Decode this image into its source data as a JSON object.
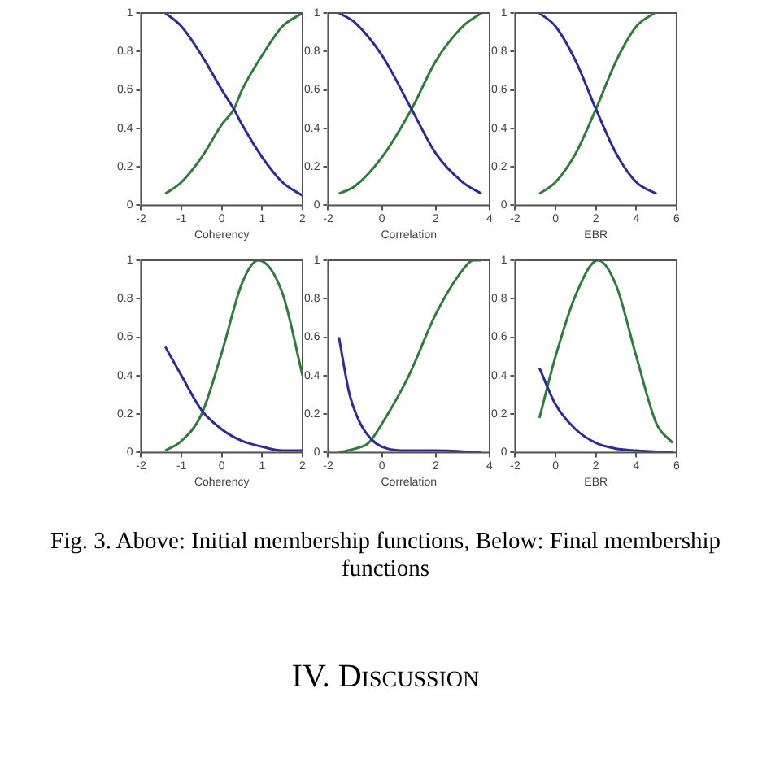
{
  "chart_data": [
    {
      "type": "line",
      "xlabel": "Coherency",
      "xlim": [
        -2,
        2
      ],
      "xticks": [
        -2,
        -1,
        0,
        1,
        2
      ],
      "ylim": [
        0,
        1
      ],
      "yticks": [
        0,
        0.2,
        0.4,
        0.6,
        0.8,
        1
      ],
      "annotations": [
        "Fig. 3. Above: Initial membership functions, Below: Final membership functions",
        "IV. Discussion"
      ],
      "series": [
        {
          "color": "#2b2b9a",
          "x": [
            -1.4,
            -1,
            -0.5,
            0,
            0.3,
            0.5,
            1,
            1.5,
            2
          ],
          "values": [
            1,
            0.93,
            0.78,
            0.6,
            0.5,
            0.42,
            0.25,
            0.12,
            0.05
          ]
        },
        {
          "color": "#2e7d3a",
          "x": [
            -1.4,
            -1,
            -0.5,
            0,
            0.3,
            0.5,
            1,
            1.5,
            2
          ],
          "values": [
            0.06,
            0.12,
            0.25,
            0.42,
            0.5,
            0.6,
            0.78,
            0.93,
            1
          ]
        }
      ]
    },
    {
      "type": "line",
      "xlabel": "Correlation",
      "xlim": [
        -2,
        4
      ],
      "xticks": [
        -2,
        0,
        2,
        4
      ],
      "ylim": [
        0,
        1
      ],
      "yticks": [
        0,
        0.2,
        0.4,
        0.6,
        0.8,
        1
      ],
      "series": [
        {
          "color": "#2b2b9a",
          "x": [
            -1.6,
            -1,
            0,
            1.1,
            2,
            3,
            3.7
          ],
          "values": [
            1,
            0.95,
            0.78,
            0.5,
            0.27,
            0.12,
            0.06
          ]
        },
        {
          "color": "#2e7d3a",
          "x": [
            -1.6,
            -1,
            0,
            1.1,
            2,
            3,
            3.7
          ],
          "values": [
            0.06,
            0.1,
            0.25,
            0.5,
            0.75,
            0.93,
            1
          ]
        }
      ]
    },
    {
      "type": "line",
      "xlabel": "EBR",
      "xlim": [
        -2,
        6
      ],
      "xticks": [
        -2,
        0,
        2,
        4,
        6
      ],
      "ylim": [
        0,
        1
      ],
      "yticks": [
        0,
        0.2,
        0.4,
        0.6,
        0.8,
        1
      ],
      "series": [
        {
          "color": "#2b2b9a",
          "x": [
            -0.8,
            0,
            1,
            2,
            3,
            4,
            5
          ],
          "values": [
            1,
            0.93,
            0.75,
            0.5,
            0.27,
            0.12,
            0.06
          ]
        },
        {
          "color": "#2e7d3a",
          "x": [
            -0.8,
            0,
            1,
            2,
            3,
            4,
            4.9
          ],
          "values": [
            0.06,
            0.12,
            0.27,
            0.5,
            0.75,
            0.93,
            1
          ]
        }
      ]
    },
    {
      "type": "line",
      "xlabel": "Coherency",
      "xlim": [
        -2,
        2
      ],
      "xticks": [
        -2,
        -1,
        0,
        1,
        2
      ],
      "ylim": [
        0,
        1
      ],
      "yticks": [
        0,
        0.2,
        0.4,
        0.6,
        0.8,
        1
      ],
      "series": [
        {
          "color": "#2b2b9a",
          "x": [
            -1.4,
            -1,
            -0.5,
            0,
            0.5,
            1,
            1.5,
            2
          ],
          "values": [
            0.55,
            0.4,
            0.22,
            0.12,
            0.06,
            0.03,
            0.01,
            0.01
          ]
        },
        {
          "color": "#2e7d3a",
          "x": [
            -1.4,
            -1,
            -0.5,
            0,
            0.5,
            0.9,
            1.5,
            2
          ],
          "values": [
            0.01,
            0.06,
            0.2,
            0.52,
            0.88,
            1,
            0.83,
            0.4
          ]
        }
      ]
    },
    {
      "type": "line",
      "xlabel": "Correlation",
      "xlim": [
        -2,
        4
      ],
      "xticks": [
        -2,
        0,
        2,
        4
      ],
      "ylim": [
        0,
        1
      ],
      "yticks": [
        0,
        0.2,
        0.4,
        0.6,
        0.8,
        1
      ],
      "series": [
        {
          "color": "#2b2b9a",
          "x": [
            -1.6,
            -1.2,
            -0.8,
            -0.4,
            0,
            1,
            2,
            3.7
          ],
          "values": [
            0.6,
            0.3,
            0.15,
            0.07,
            0.03,
            0.01,
            0.01,
            0
          ]
        },
        {
          "color": "#2e7d3a",
          "x": [
            -1.6,
            -1,
            -0.5,
            0,
            1,
            2,
            3,
            3.4,
            3.7
          ],
          "values": [
            0,
            0.02,
            0.05,
            0.15,
            0.4,
            0.72,
            0.95,
            1,
            1
          ]
        }
      ]
    },
    {
      "type": "line",
      "xlabel": "EBR",
      "xlim": [
        -2,
        6
      ],
      "xticks": [
        -2,
        0,
        2,
        4,
        6
      ],
      "ylim": [
        0,
        1
      ],
      "yticks": [
        0,
        0.2,
        0.4,
        0.6,
        0.8,
        1
      ],
      "series": [
        {
          "color": "#2b2b9a",
          "x": [
            -0.8,
            0,
            1,
            2,
            3,
            4,
            5.8
          ],
          "values": [
            0.44,
            0.25,
            0.12,
            0.05,
            0.02,
            0.01,
            0
          ]
        },
        {
          "color": "#2e7d3a",
          "x": [
            -0.8,
            0,
            1,
            2.1,
            3,
            4,
            5,
            5.8
          ],
          "values": [
            0.18,
            0.5,
            0.82,
            1,
            0.87,
            0.5,
            0.15,
            0.05
          ]
        }
      ]
    }
  ]
}
